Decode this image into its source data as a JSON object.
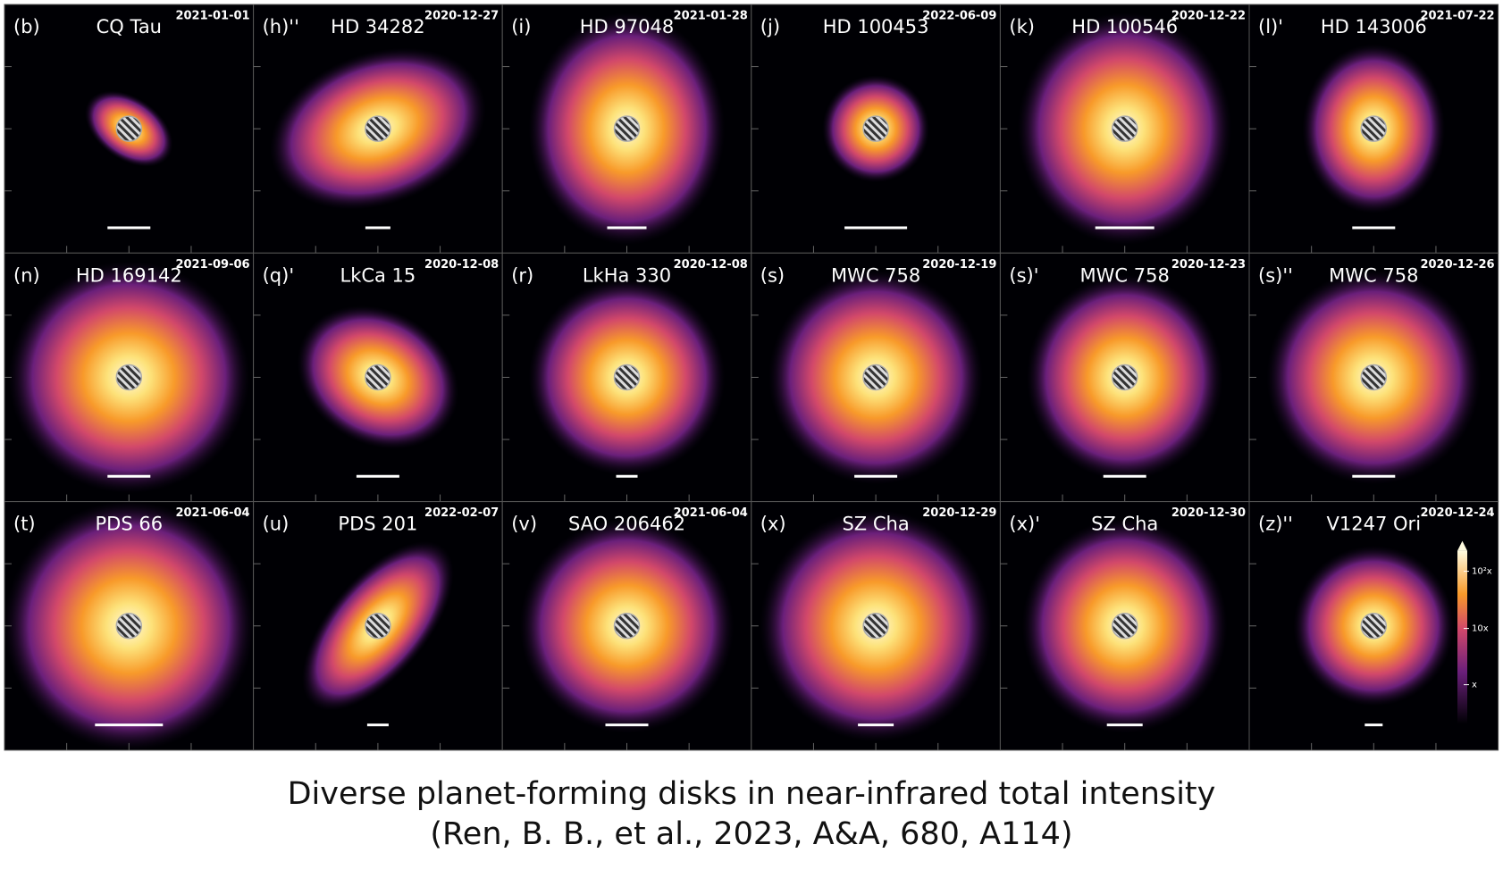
{
  "panels": [
    {
      "label": "(b)",
      "name": "CQ Tau",
      "date": "2021-01-01"
    },
    {
      "label": "(h)''",
      "name": "HD 34282",
      "date": "2020-12-27"
    },
    {
      "label": "(i)",
      "name": "HD 97048",
      "date": "2021-01-28"
    },
    {
      "label": "(j)",
      "name": "HD 100453",
      "date": "2022-06-09"
    },
    {
      "label": "(k)",
      "name": "HD 100546",
      "date": "2020-12-22"
    },
    {
      "label": "(l)'",
      "name": "HD 143006",
      "date": "2021-07-22"
    },
    {
      "label": "(n)",
      "name": "HD 169142",
      "date": "2021-09-06"
    },
    {
      "label": "(q)'",
      "name": "LkCa 15",
      "date": "2020-12-08"
    },
    {
      "label": "(r)",
      "name": "LkHa 330",
      "date": "2020-12-08"
    },
    {
      "label": "(s)",
      "name": "MWC 758",
      "date": "2020-12-19"
    },
    {
      "label": "(s)'",
      "name": "MWC 758",
      "date": "2020-12-23"
    },
    {
      "label": "(s)''",
      "name": "MWC 758",
      "date": "2020-12-26"
    },
    {
      "label": "(t)",
      "name": "PDS 66",
      "date": "2021-06-04"
    },
    {
      "label": "(u)",
      "name": "PDS 201",
      "date": "2022-02-07"
    },
    {
      "label": "(v)",
      "name": "SAO 206462",
      "date": "2021-06-04"
    },
    {
      "label": "(x)",
      "name": "SZ Cha",
      "date": "2020-12-29"
    },
    {
      "label": "(x)'",
      "name": "SZ Cha",
      "date": "2020-12-30"
    },
    {
      "label": "(z)''",
      "name": "V1247 Ori",
      "date": "2020-12-24"
    }
  ],
  "colorbar_labels": [
    "10²x",
    "10x",
    "x"
  ],
  "caption": [
    "Diverse planet-forming disks in near-infrared total intensity",
    "(Ren, B. B., et al., 2023, A&A, 680, A114)"
  ]
}
